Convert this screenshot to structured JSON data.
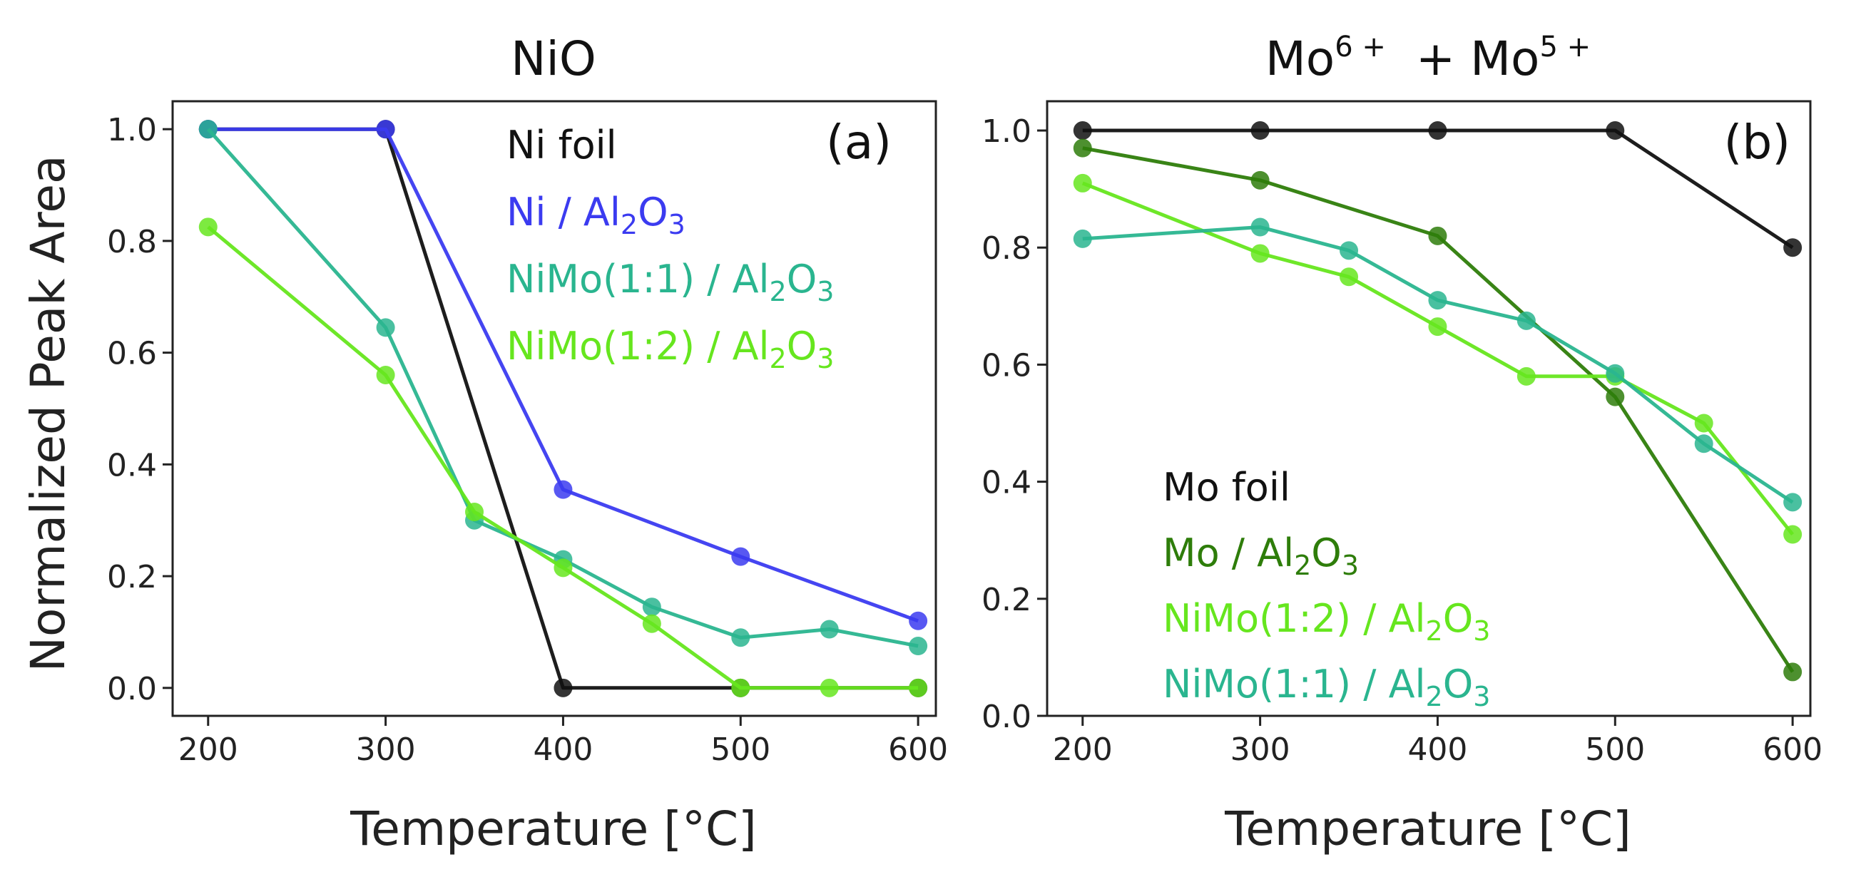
{
  "chart_data": [
    {
      "type": "line",
      "title": "NiO",
      "panel_label": "(a)",
      "xlabel": "Temperature [°C]",
      "ylabel": "Normalized Peak Area",
      "xlim": [
        180,
        610
      ],
      "ylim": [
        -0.05,
        1.05
      ],
      "xticks": [
        200,
        300,
        400,
        500,
        600
      ],
      "yticks": [
        0.0,
        0.2,
        0.4,
        0.6,
        0.8,
        1.0
      ],
      "xtick_labels": [
        "200",
        "300",
        "400",
        "500",
        "600"
      ],
      "ytick_labels": [
        "0.0",
        "0.2",
        "0.4",
        "0.6",
        "0.8",
        "1.0"
      ],
      "legend_position": "top-right",
      "series": [
        {
          "name": "Ni foil",
          "name_parts": [
            "Ni foil"
          ],
          "color": "#111111",
          "x": [
            200,
            300,
            400,
            500,
            600
          ],
          "y": [
            1.0,
            1.0,
            0.0,
            0.0,
            0.0
          ]
        },
        {
          "name": "Ni / Al2O3",
          "name_parts": [
            "Ni / Al",
            "2",
            "O",
            "3"
          ],
          "color": "#3b3bf0",
          "x": [
            200,
            300,
            400,
            500,
            600
          ],
          "y": [
            1.0,
            1.0,
            0.355,
            0.235,
            0.12
          ]
        },
        {
          "name": "NiMo(1:1) / Al2O3",
          "name_parts": [
            "NiMo(1:1) / Al",
            "2",
            "O",
            "3"
          ],
          "color": "#2ab58f",
          "x": [
            200,
            300,
            350,
            400,
            450,
            500,
            550,
            600
          ],
          "y": [
            1.0,
            0.645,
            0.3,
            0.23,
            0.145,
            0.09,
            0.105,
            0.075
          ]
        },
        {
          "name": "NiMo(1:2) / Al2O3",
          "name_parts": [
            "NiMo(1:2) / Al",
            "2",
            "O",
            "3"
          ],
          "color": "#66e61e",
          "x": [
            200,
            300,
            350,
            400,
            450,
            500,
            550,
            600
          ],
          "y": [
            0.825,
            0.56,
            0.315,
            0.215,
            0.115,
            0.0,
            0.0,
            0.0
          ]
        }
      ]
    },
    {
      "type": "line",
      "title": "Mo6+ + Mo5+",
      "title_parts": [
        "Mo",
        "6 +",
        "  + Mo",
        "5 +"
      ],
      "panel_label": "(b)",
      "xlabel": "Temperature [°C]",
      "ylabel": "",
      "xlim": [
        180,
        610
      ],
      "ylim": [
        0.0,
        1.05
      ],
      "xticks": [
        200,
        300,
        400,
        500,
        600
      ],
      "yticks": [
        0.0,
        0.2,
        0.4,
        0.6,
        0.8,
        1.0
      ],
      "xtick_labels": [
        "200",
        "300",
        "400",
        "500",
        "600"
      ],
      "ytick_labels": [
        "0.0",
        "0.2",
        "0.4",
        "0.6",
        "0.8",
        "1.0"
      ],
      "legend_position": "bottom-left",
      "series": [
        {
          "name": "Mo foil",
          "name_parts": [
            "Mo foil"
          ],
          "color": "#111111",
          "x": [
            200,
            300,
            400,
            500,
            600
          ],
          "y": [
            1.0,
            1.0,
            1.0,
            1.0,
            0.8
          ]
        },
        {
          "name": "Mo / Al2O3",
          "name_parts": [
            "Mo / Al",
            "2",
            "O",
            "3"
          ],
          "color": "#2e7d0a",
          "x": [
            200,
            300,
            400,
            500,
            600
          ],
          "y": [
            0.97,
            0.915,
            0.82,
            0.545,
            0.075
          ]
        },
        {
          "name": "NiMo(1:2) / Al2O3",
          "name_parts": [
            "NiMo(1:2) / Al",
            "2",
            "O",
            "3"
          ],
          "color": "#66e61e",
          "x": [
            200,
            300,
            350,
            400,
            450,
            500,
            550,
            600
          ],
          "y": [
            0.91,
            0.79,
            0.75,
            0.665,
            0.58,
            0.58,
            0.5,
            0.31
          ]
        },
        {
          "name": "NiMo(1:1) / Al2O3",
          "name_parts": [
            "NiMo(1:1) / Al",
            "2",
            "O",
            "3"
          ],
          "color": "#2ab58f",
          "x": [
            200,
            300,
            350,
            400,
            450,
            500,
            550,
            600
          ],
          "y": [
            0.815,
            0.835,
            0.795,
            0.71,
            0.675,
            0.585,
            0.465,
            0.365
          ]
        }
      ]
    }
  ]
}
